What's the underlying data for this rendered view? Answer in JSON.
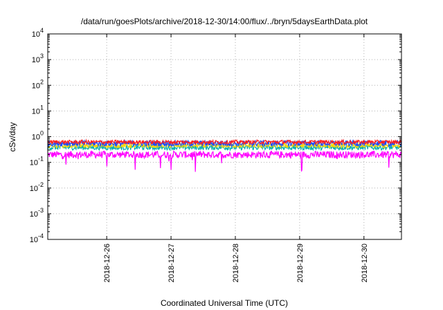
{
  "chart_data": {
    "type": "line",
    "title": "/data/run/goesPlots/archive/2018-12-30/14:00/flux/../bryn/5daysEarthData.plot",
    "xlabel": "Coordinated Universal Time (UTC)",
    "ylabel": "cSv/day",
    "yscale": "log",
    "ylim": [
      0.0001,
      10000
    ],
    "y_ticks": [
      {
        "value": 0.0001,
        "base": "10",
        "exp": "-4"
      },
      {
        "value": 0.001,
        "base": "10",
        "exp": "-3"
      },
      {
        "value": 0.01,
        "base": "10",
        "exp": "-2"
      },
      {
        "value": 0.1,
        "base": "10",
        "exp": "-1"
      },
      {
        "value": 1,
        "base": "10",
        "exp": "0"
      },
      {
        "value": 10,
        "base": "10",
        "exp": "1"
      },
      {
        "value": 100,
        "base": "10",
        "exp": "2"
      },
      {
        "value": 1000,
        "base": "10",
        "exp": "3"
      },
      {
        "value": 10000,
        "base": "10",
        "exp": "4"
      }
    ],
    "xlim": [
      "2018-12-25T02:00",
      "2018-12-30T14:00"
    ],
    "x_ticks": [
      "2018-12-26",
      "2018-12-27",
      "2018-12-28",
      "2018-12-29",
      "2018-12-30"
    ],
    "grid": true,
    "legend": "none",
    "series": [
      {
        "color": "#ff00ff",
        "level": 0.2,
        "spread": 0.55
      },
      {
        "color": "#00b0b0",
        "level": 0.38,
        "spread": 0.4
      },
      {
        "color": "#ffd700",
        "level": 0.45,
        "spread": 0.35
      },
      {
        "color": "#1a4cff",
        "level": 0.55,
        "spread": 0.45
      },
      {
        "color": "#ff2020",
        "level": 0.62,
        "spread": 0.3
      }
    ]
  }
}
